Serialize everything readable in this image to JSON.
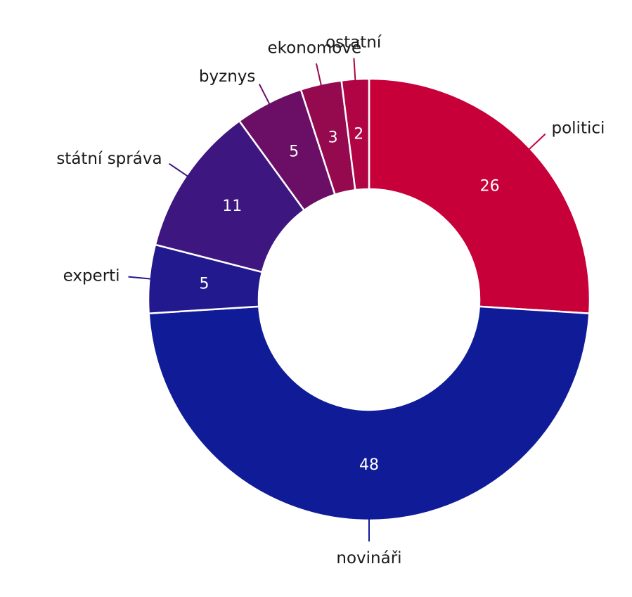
{
  "chart_data": {
    "type": "pie",
    "variant": "donut",
    "total": 100,
    "slices": [
      {
        "label": "politici",
        "value": 26,
        "color": "#c8003a"
      },
      {
        "label": "novináři",
        "value": 48,
        "color": "#101b98"
      },
      {
        "label": "experti",
        "value": 5,
        "color": "#22198f"
      },
      {
        "label": "státní správa",
        "value": 11,
        "color": "#3d1680"
      },
      {
        "label": "byznys",
        "value": 5,
        "color": "#6a0e66"
      },
      {
        "label": "ekonomové",
        "value": 3,
        "color": "#95094f"
      },
      {
        "label": "ostatní",
        "value": 2,
        "color": "#b00444"
      }
    ]
  }
}
